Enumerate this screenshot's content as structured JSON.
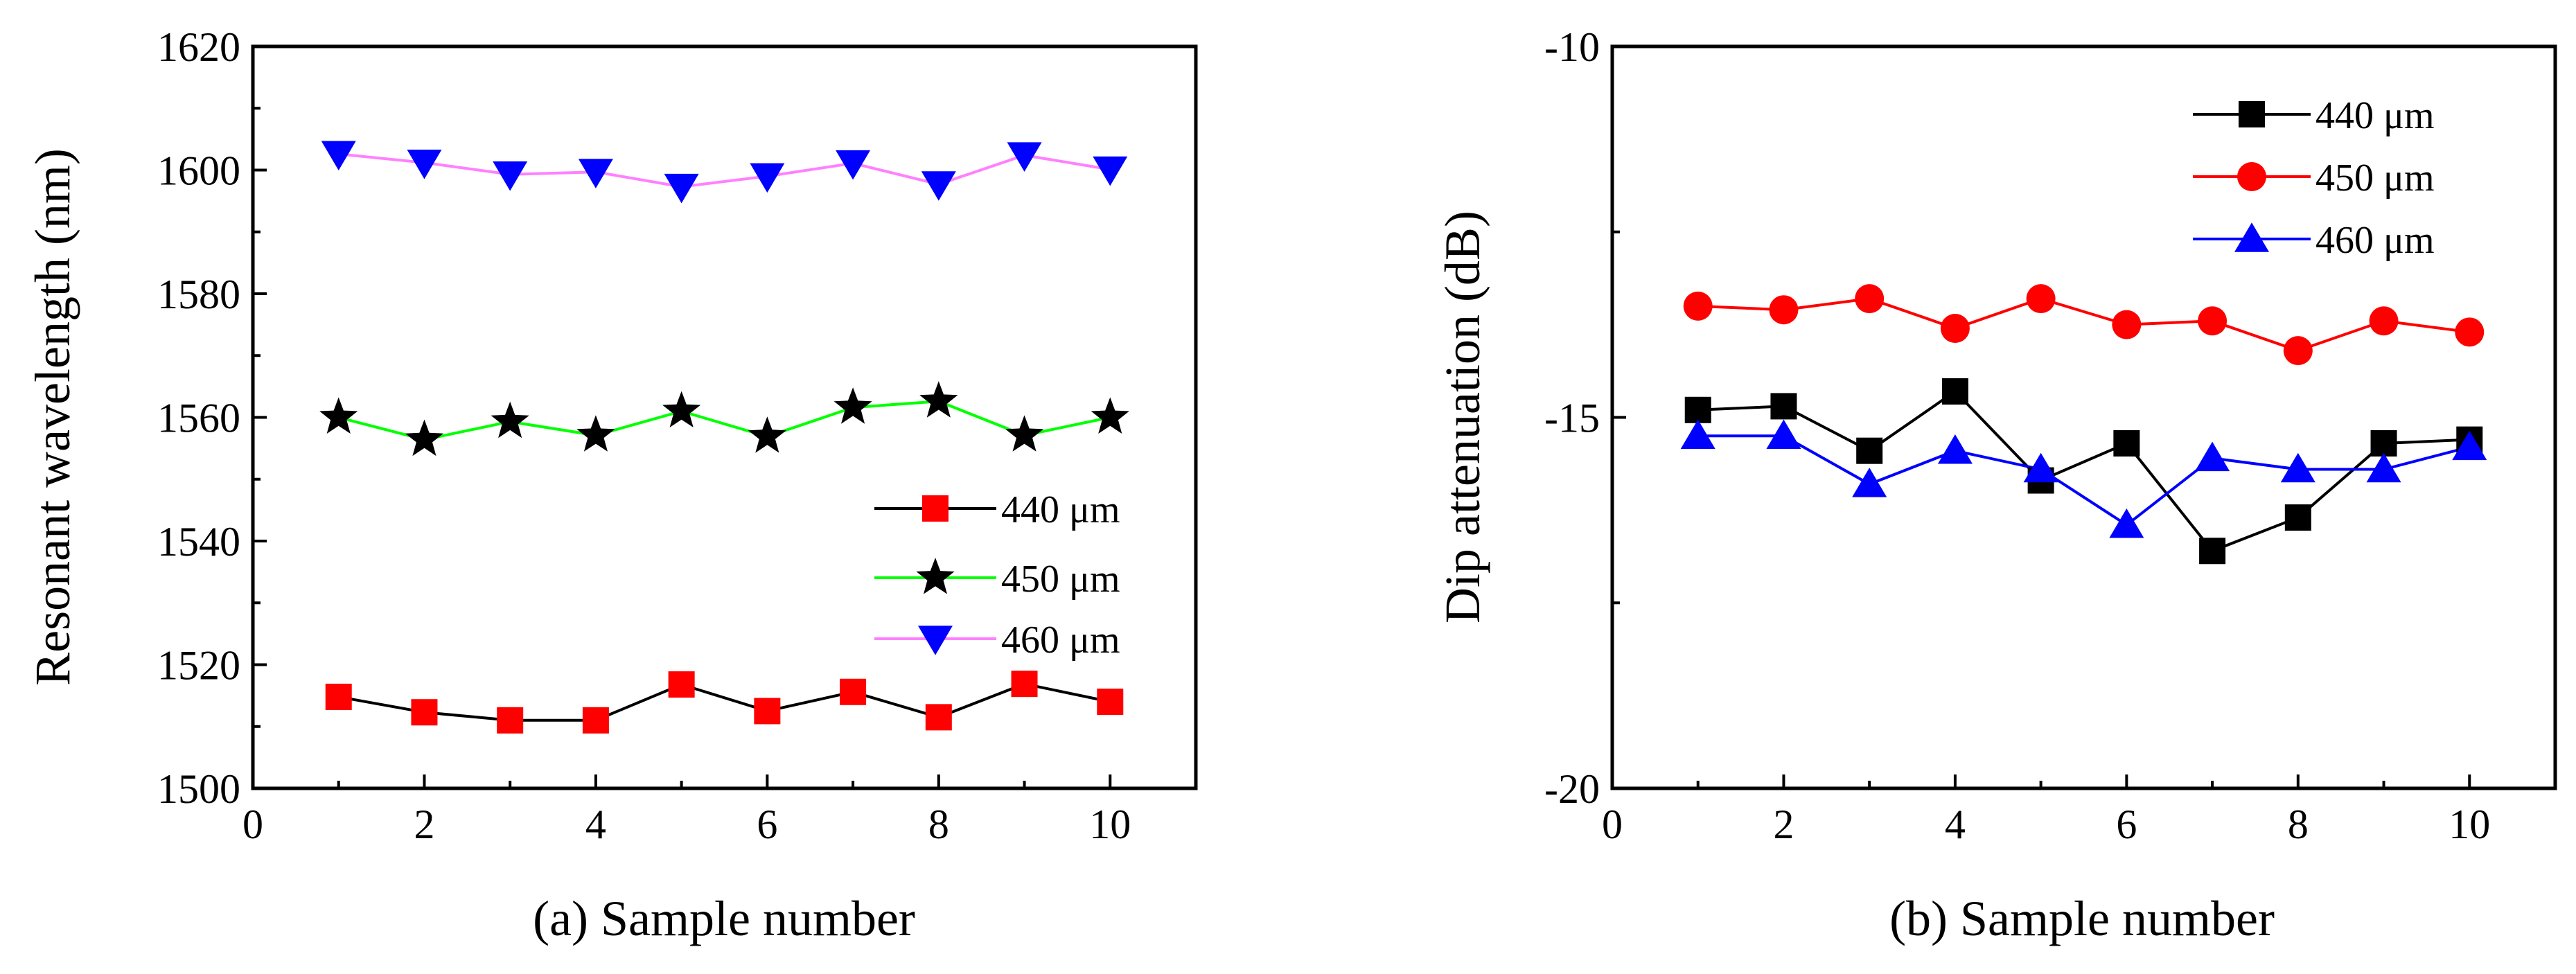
{
  "chart_data": [
    {
      "type": "line",
      "xlabel": "(a) Sample number",
      "ylabel": "Resonant wavelength (nm)",
      "xlim": [
        0,
        11
      ],
      "ylim": [
        1500,
        1620
      ],
      "x_ticks": [
        0,
        2,
        4,
        6,
        8,
        10
      ],
      "y_ticks": [
        1500,
        1520,
        1540,
        1560,
        1580,
        1600,
        1620
      ],
      "grid": false,
      "legend_position": "lower-right",
      "x": [
        1,
        2,
        3,
        4,
        5,
        6,
        7,
        8,
        9,
        10
      ],
      "series": [
        {
          "name": "440 μm",
          "marker": "square",
          "line_color": "#000000",
          "marker_color": "#ff0000",
          "values": [
            1514.8,
            1512.3,
            1511.0,
            1511.0,
            1516.8,
            1512.5,
            1515.6,
            1511.5,
            1516.9,
            1514.0
          ]
        },
        {
          "name": "450 μm",
          "marker": "star",
          "line_color": "#00ff00",
          "marker_color": "#000000",
          "values": [
            1560.0,
            1556.4,
            1559.3,
            1557.1,
            1561.0,
            1556.9,
            1561.6,
            1562.6,
            1557.1,
            1560.0
          ]
        },
        {
          "name": "460 μm",
          "marker": "triangle-down",
          "line_color": "#ff80ff",
          "marker_color": "#0000ff",
          "values": [
            1602.6,
            1601.2,
            1599.3,
            1599.7,
            1597.3,
            1599.0,
            1601.1,
            1597.7,
            1602.4,
            1600.1
          ]
        }
      ]
    },
    {
      "type": "line",
      "xlabel": "(b) Sample number",
      "ylabel": "Dip attenuation (dB)",
      "xlim": [
        0,
        11
      ],
      "ylim": [
        -20,
        -10
      ],
      "x_ticks": [
        0,
        2,
        4,
        6,
        8,
        10
      ],
      "y_ticks": [
        -20,
        -15,
        -10
      ],
      "grid": false,
      "legend_position": "top-right",
      "x": [
        1,
        2,
        3,
        4,
        5,
        6,
        7,
        8,
        9,
        10
      ],
      "series": [
        {
          "name": "440 μm",
          "marker": "square",
          "line_color": "#000000",
          "marker_color": "#000000",
          "values": [
            -14.9,
            -14.85,
            -15.45,
            -14.65,
            -15.85,
            -15.35,
            -16.8,
            -16.35,
            -15.35,
            -15.3
          ]
        },
        {
          "name": "450 μm",
          "marker": "circle",
          "line_color": "#ff0000",
          "marker_color": "#ff0000",
          "values": [
            -13.5,
            -13.55,
            -13.4,
            -13.8,
            -13.4,
            -13.75,
            -13.7,
            -14.1,
            -13.7,
            -13.85
          ]
        },
        {
          "name": "460 μm",
          "marker": "triangle-up",
          "line_color": "#0000ff",
          "marker_color": "#0000ff",
          "values": [
            -15.25,
            -15.25,
            -15.9,
            -15.45,
            -15.7,
            -16.45,
            -15.55,
            -15.7,
            -15.7,
            -15.4
          ]
        }
      ]
    }
  ]
}
